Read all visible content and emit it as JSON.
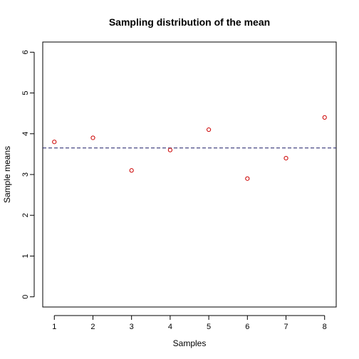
{
  "chart_data": {
    "type": "scatter",
    "title": "Sampling distribution of the mean",
    "xlabel": "Samples",
    "ylabel": "Sample means",
    "xlim": [
      0.7,
      8.3
    ],
    "ylim": [
      -0.25,
      6.25
    ],
    "x_ticks": [
      "1",
      "2",
      "3",
      "4",
      "5",
      "6",
      "7",
      "8"
    ],
    "y_ticks": [
      "0",
      "1",
      "2",
      "3",
      "4",
      "5",
      "6"
    ],
    "x": [
      1,
      2,
      3,
      4,
      5,
      6,
      7,
      8
    ],
    "y": [
      3.8,
      3.9,
      3.1,
      3.6,
      4.1,
      2.9,
      3.4,
      4.4
    ],
    "reference_line": {
      "y": 3.65,
      "style": "dashed"
    },
    "grid": false,
    "point_color": "#cc0000",
    "line_color": "#1a1a66"
  }
}
